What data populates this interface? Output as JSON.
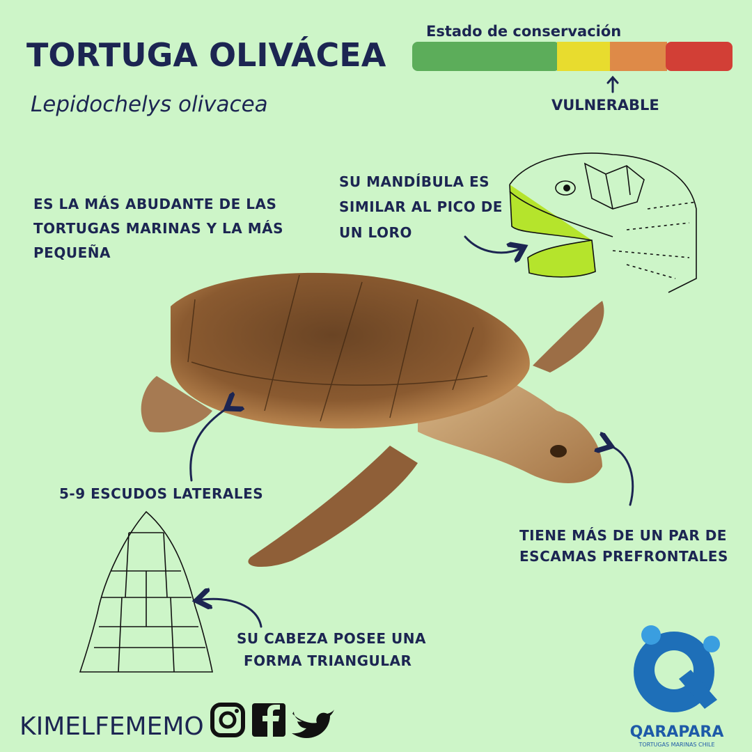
{
  "header": {
    "title": "TORTUGA OLIVÁCEA",
    "subtitle": "Lepidochelys olivacea"
  },
  "conservation": {
    "label": "Estado de conservación",
    "status": "VULNERABLE"
  },
  "annotations": [
    {
      "lines": [
        "ES LA MÁS ABUDANTE DE LAS",
        "TORTUGAS MARINAS Y LA MÁS",
        "PEQUEÑA"
      ]
    },
    {
      "lines": [
        "SU MANDÍBULA ES",
        "SIMILAR AL PICO DE",
        "UN LORO"
      ]
    },
    {
      "lines": [
        "5-9 ESCUDOS LATERALES"
      ]
    },
    {
      "lines": [
        "TIENE MÁS DE UN PAR DE",
        "ESCAMAS PREFRONTALES"
      ]
    },
    {
      "lines": [
        "SU CABEZA POSEE UNA",
        "FORMA TRIANGULAR"
      ]
    }
  ],
  "footer": {
    "handle": "KIMELFEMEMO"
  },
  "logo": {
    "name": "QARAPARA",
    "tagline": "TORTUGAS MARINAS CHILE"
  }
}
